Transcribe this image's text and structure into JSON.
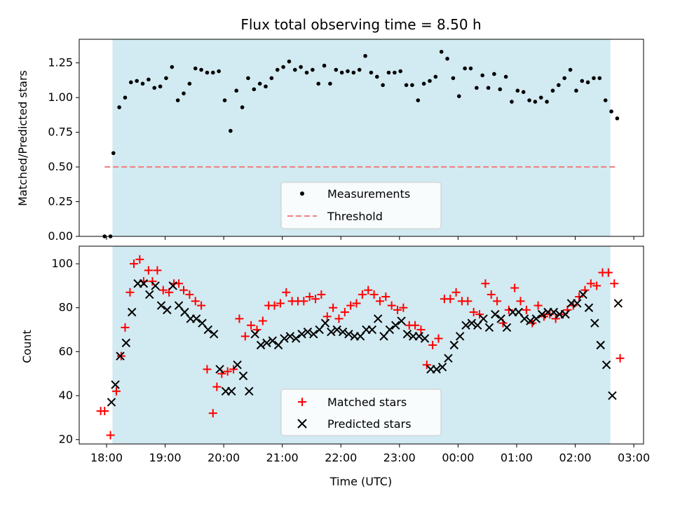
{
  "chart_data": [
    {
      "type": "scatter",
      "title": "Flux total observing time = 8.50 h",
      "ylabel": "Matched/Predicted stars",
      "xlabel": "",
      "xlim": [
        "17:32",
        "03:10"
      ],
      "ylim": [
        0,
        1.42
      ],
      "yticks": [
        "0.00",
        "0.25",
        "0.50",
        "0.75",
        "1.00",
        "1.25"
      ],
      "observing_window": [
        "18:06",
        "02:36"
      ],
      "window_color": "#add8e6",
      "legend_position": "lower-center",
      "series": [
        {
          "name": "Measurements",
          "marker": "dot",
          "color": "#000000",
          "x": [
            "17:58",
            "18:04",
            "18:07",
            "18:13",
            "18:19",
            "18:25",
            "18:31",
            "18:37",
            "18:43",
            "18:49",
            "18:55",
            "19:01",
            "19:07",
            "19:13",
            "19:19",
            "19:25",
            "19:31",
            "19:37",
            "19:43",
            "19:49",
            "19:55",
            "20:01",
            "20:07",
            "20:13",
            "20:19",
            "20:25",
            "20:31",
            "20:37",
            "20:43",
            "20:49",
            "20:55",
            "21:01",
            "21:07",
            "21:13",
            "21:19",
            "21:25",
            "21:31",
            "21:37",
            "21:43",
            "21:49",
            "21:55",
            "22:01",
            "22:07",
            "22:13",
            "22:19",
            "22:25",
            "22:31",
            "22:37",
            "22:43",
            "22:49",
            "22:55",
            "23:01",
            "23:07",
            "23:13",
            "23:19",
            "23:25",
            "23:31",
            "23:37",
            "23:43",
            "23:49",
            "23:55",
            "00:01",
            "00:07",
            "00:13",
            "00:19",
            "00:25",
            "00:31",
            "00:37",
            "00:43",
            "00:49",
            "00:55",
            "01:01",
            "01:07",
            "01:13",
            "01:19",
            "01:25",
            "01:31",
            "01:37",
            "01:43",
            "01:49",
            "01:55",
            "02:01",
            "02:07",
            "02:13",
            "02:19",
            "02:25",
            "02:31",
            "02:37",
            "02:43"
          ],
          "y": [
            0.0,
            0.0,
            0.6,
            0.93,
            1.0,
            1.11,
            1.12,
            1.1,
            1.13,
            1.07,
            1.08,
            1.14,
            1.22,
            0.98,
            1.03,
            1.1,
            1.21,
            1.2,
            1.18,
            1.18,
            1.19,
            0.98,
            0.76,
            1.05,
            0.93,
            1.14,
            1.06,
            1.1,
            1.08,
            1.14,
            1.2,
            1.22,
            1.26,
            1.2,
            1.22,
            1.18,
            1.2,
            1.1,
            1.23,
            1.1,
            1.2,
            1.18,
            1.19,
            1.18,
            1.2,
            1.3,
            1.18,
            1.15,
            1.09,
            1.18,
            1.18,
            1.19,
            1.09,
            1.09,
            0.98,
            1.1,
            1.12,
            1.15,
            1.33,
            1.28,
            1.14,
            1.01,
            1.21,
            1.21,
            1.07,
            1.16,
            1.07,
            1.17,
            1.06,
            1.15,
            0.97,
            1.05,
            1.04,
            0.98,
            0.97,
            1.0,
            0.97,
            1.05,
            1.09,
            1.14,
            1.2,
            1.05,
            1.12,
            1.11,
            1.14,
            1.14,
            0.98,
            0.9,
            0.85
          ]
        },
        {
          "name": "Threshold",
          "style": "dashed",
          "color": "#f08080",
          "x": [
            "17:58",
            "02:43"
          ],
          "y": [
            0.5,
            0.5
          ]
        }
      ]
    },
    {
      "type": "scatter",
      "title": "",
      "ylabel": "Count",
      "xlabel": "Time (UTC)",
      "xlim": [
        "17:32",
        "03:10"
      ],
      "ylim": [
        18,
        108
      ],
      "yticks": [
        "20",
        "40",
        "60",
        "80",
        "100"
      ],
      "xticks": [
        "18:00",
        "19:00",
        "20:00",
        "21:00",
        "22:00",
        "23:00",
        "00:00",
        "01:00",
        "02:00",
        "03:00"
      ],
      "observing_window": [
        "18:06",
        "02:36"
      ],
      "window_color": "#add8e6",
      "legend_position": "lower-center",
      "series": [
        {
          "name": "Matched stars",
          "marker": "plus",
          "color": "#ff0000",
          "x": [
            "17:54",
            "17:58",
            "18:04",
            "18:10",
            "18:15",
            "18:19",
            "18:24",
            "18:28",
            "18:34",
            "18:38",
            "18:43",
            "18:47",
            "18:52",
            "18:58",
            "19:04",
            "19:09",
            "19:14",
            "19:19",
            "19:25",
            "19:31",
            "19:37",
            "19:43",
            "19:49",
            "19:53",
            "19:58",
            "20:04",
            "20:10",
            "20:16",
            "20:22",
            "20:28",
            "20:34",
            "20:40",
            "20:46",
            "20:52",
            "20:58",
            "21:04",
            "21:10",
            "21:16",
            "21:22",
            "21:28",
            "21:34",
            "21:40",
            "21:46",
            "21:52",
            "21:58",
            "22:04",
            "22:10",
            "22:16",
            "22:22",
            "22:28",
            "22:34",
            "22:40",
            "22:46",
            "22:52",
            "22:58",
            "23:04",
            "23:10",
            "23:16",
            "23:22",
            "23:28",
            "23:34",
            "23:40",
            "23:46",
            "23:52",
            "23:58",
            "00:04",
            "00:10",
            "00:16",
            "00:22",
            "00:28",
            "00:34",
            "00:40",
            "00:46",
            "00:52",
            "00:58",
            "01:04",
            "01:10",
            "01:16",
            "01:22",
            "01:28",
            "01:34",
            "01:40",
            "01:46",
            "01:52",
            "01:58",
            "02:04",
            "02:10",
            "02:16",
            "02:22",
            "02:28",
            "02:34",
            "02:40",
            "02:46"
          ],
          "y": [
            33,
            33,
            22,
            42,
            58,
            71,
            87,
            100,
            102,
            92,
            97,
            92,
            97,
            88,
            87,
            91,
            91,
            88,
            86,
            83,
            81,
            52,
            32,
            44,
            50,
            51,
            52,
            75,
            67,
            72,
            70,
            74,
            81,
            81,
            82,
            87,
            83,
            83,
            83,
            85,
            84,
            86,
            76,
            80,
            75,
            78,
            81,
            82,
            86,
            88,
            86,
            83,
            85,
            81,
            79,
            80,
            72,
            72,
            70,
            54,
            63,
            66,
            84,
            84,
            87,
            83,
            83,
            78,
            77,
            91,
            86,
            83,
            73,
            79,
            89,
            83,
            79,
            73,
            81,
            76,
            77,
            75,
            77,
            79,
            81,
            85,
            88,
            91,
            90,
            96,
            96,
            91,
            57
          ]
        },
        {
          "name": "Predicted stars",
          "marker": "cross",
          "color": "#000000",
          "x": [
            "18:05",
            "18:09",
            "18:14",
            "18:20",
            "18:26",
            "18:32",
            "18:38",
            "18:44",
            "18:50",
            "18:56",
            "19:02",
            "19:08",
            "19:14",
            "19:20",
            "19:26",
            "19:32",
            "19:38",
            "19:44",
            "19:50",
            "19:56",
            "20:02",
            "20:08",
            "20:14",
            "20:20",
            "20:26",
            "20:32",
            "20:38",
            "20:44",
            "20:50",
            "20:56",
            "21:02",
            "21:08",
            "21:14",
            "21:20",
            "21:26",
            "21:32",
            "21:38",
            "21:44",
            "21:50",
            "21:56",
            "22:02",
            "22:08",
            "22:14",
            "22:20",
            "22:26",
            "22:32",
            "22:38",
            "22:44",
            "22:50",
            "22:56",
            "23:02",
            "23:08",
            "23:14",
            "23:20",
            "23:26",
            "23:32",
            "23:38",
            "23:44",
            "23:50",
            "23:56",
            "00:02",
            "00:08",
            "00:14",
            "00:20",
            "00:26",
            "00:32",
            "00:38",
            "00:44",
            "00:50",
            "00:56",
            "01:02",
            "01:08",
            "01:14",
            "01:20",
            "01:26",
            "01:32",
            "01:38",
            "01:44",
            "01:50",
            "01:56",
            "02:02",
            "02:08",
            "02:14",
            "02:20",
            "02:26",
            "02:32",
            "02:38",
            "02:44"
          ],
          "y": [
            37,
            45,
            58,
            64,
            78,
            91,
            91,
            86,
            90,
            81,
            79,
            90,
            81,
            78,
            75,
            75,
            73,
            70,
            68,
            52,
            42,
            42,
            54,
            49,
            42,
            68,
            63,
            64,
            65,
            63,
            66,
            67,
            66,
            68,
            69,
            68,
            70,
            73,
            69,
            70,
            69,
            68,
            67,
            67,
            70,
            70,
            75,
            67,
            70,
            72,
            74,
            68,
            67,
            67,
            66,
            52,
            52,
            53,
            57,
            63,
            67,
            72,
            73,
            72,
            75,
            71,
            77,
            75,
            71,
            78,
            78,
            75,
            74,
            75,
            77,
            78,
            78,
            77,
            77,
            82,
            82,
            86,
            80,
            73,
            63,
            54,
            40,
            82
          ]
        }
      ]
    }
  ]
}
